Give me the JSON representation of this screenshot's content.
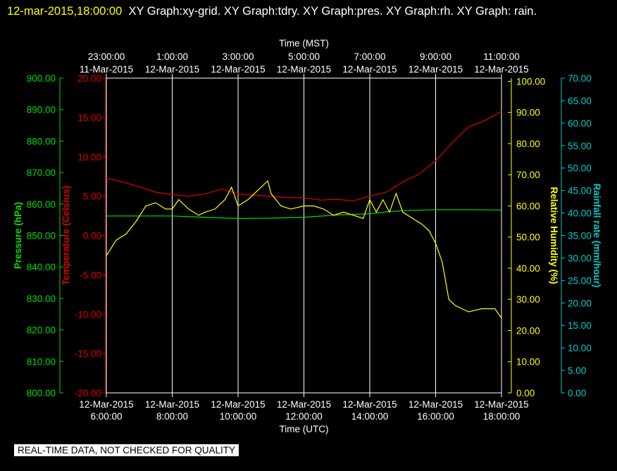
{
  "header": {
    "timestamp": "12-mar-2015,18:00:00",
    "graphs": "XY Graph:xy-grid.  XY Graph:tdry.  XY Graph:pres.  XY Graph:rh.  XY Graph: rain."
  },
  "footer": {
    "notice": "REAL-TIME DATA, NOT CHECKED FOR QUALITY"
  },
  "colors": {
    "background": "#000000",
    "grid": "#ffffff",
    "temperature": "#dd0000",
    "pressure": "#00dd00",
    "humidity": "#ffff00",
    "rain": "#00cccc"
  },
  "chart_data": {
    "type": "line",
    "x_bottom": {
      "label": "Time (UTC)",
      "ticks": [
        [
          "12-Mar-2015",
          "6:00:00"
        ],
        [
          "12-Mar-2015",
          "8:00:00"
        ],
        [
          "12-Mar-2015",
          "10:00:00"
        ],
        [
          "12-Mar-2015",
          "12:00:00"
        ],
        [
          "12-Mar-2015",
          "14:00:00"
        ],
        [
          "12-Mar-2015",
          "16:00:00"
        ],
        [
          "12-Mar-2015",
          "18:00:00"
        ]
      ]
    },
    "x_top": {
      "label": "Time (MST)",
      "ticks": [
        [
          "23:00:00",
          "11-Mar-2015"
        ],
        [
          "1:00:00",
          "12-Mar-2015"
        ],
        [
          "3:00:00",
          "12-Mar-2015"
        ],
        [
          "5:00:00",
          "12-Mar-2015"
        ],
        [
          "7:00:00",
          "12-Mar-2015"
        ],
        [
          "9:00:00",
          "12-Mar-2015"
        ],
        [
          "11:00:00",
          "12-Mar-2015"
        ]
      ]
    },
    "xlim_hours_utc": [
      6,
      18
    ],
    "grid": true,
    "axes": {
      "pressure": {
        "label": "Pressure (hPa)",
        "ylim": [
          800,
          900
        ],
        "ticks": [
          "800.00",
          "810.00",
          "820.00",
          "830.00",
          "840.00",
          "850.00",
          "860.00",
          "870.00",
          "880.00",
          "890.00",
          "900.00"
        ]
      },
      "temperature": {
        "label": "Temperature (Celsius)",
        "ylim": [
          -20,
          20
        ],
        "ticks": [
          "-20.00",
          "-15.00",
          "-10.00",
          "-5.00",
          "0.00",
          "5.00",
          "10.00",
          "15.00",
          "20.00"
        ]
      },
      "humidity": {
        "label": "Relative Humidity (%)",
        "ylim": [
          0,
          101
        ],
        "ticks": [
          "0.00",
          "10.00",
          "20.00",
          "30.00",
          "40.00",
          "50.00",
          "60.00",
          "70.00",
          "80.00",
          "90.00",
          "100.00"
        ]
      },
      "rain": {
        "label": "Rainfall rate (mm/hour)",
        "ylim": [
          0,
          70
        ],
        "ticks": [
          "0.00",
          "5.00",
          "10.00",
          "15.00",
          "20.00",
          "25.00",
          "30.00",
          "35.00",
          "40.00",
          "45.00",
          "50.00",
          "55.00",
          "60.00",
          "65.00",
          "70.00"
        ]
      }
    },
    "series": [
      {
        "name": "tdry",
        "axis": "temperature",
        "x": [
          6.0,
          6.5,
          7.0,
          7.5,
          8.0,
          8.5,
          9.0,
          9.5,
          10.0,
          10.5,
          11.0,
          11.5,
          12.0,
          12.5,
          13.0,
          13.5,
          14.0,
          14.5,
          15.0,
          15.5,
          16.0,
          16.5,
          17.0,
          17.5,
          18.0
        ],
        "y": [
          7.3,
          6.8,
          6.2,
          5.5,
          5.2,
          5.0,
          5.3,
          5.9,
          5.3,
          5.1,
          5.0,
          4.8,
          4.8,
          4.5,
          4.6,
          4.4,
          5.0,
          5.5,
          6.8,
          7.8,
          9.5,
          11.8,
          13.8,
          14.6,
          15.8
        ]
      },
      {
        "name": "pres",
        "axis": "pressure",
        "x": [
          6.0,
          7.0,
          8.0,
          9.0,
          10.0,
          11.0,
          12.0,
          13.0,
          14.0,
          14.5,
          15.0,
          16.0,
          17.0,
          18.0
        ],
        "y": [
          856.2,
          856.2,
          856.2,
          855.8,
          855.4,
          855.5,
          855.8,
          856.5,
          856.9,
          857.5,
          857.9,
          858.2,
          858.2,
          858.1
        ]
      },
      {
        "name": "rh",
        "axis": "humidity",
        "x": [
          6.0,
          6.3,
          6.6,
          6.9,
          7.2,
          7.5,
          7.8,
          8.0,
          8.2,
          8.5,
          8.8,
          9.0,
          9.3,
          9.6,
          9.8,
          10.0,
          10.3,
          10.6,
          10.9,
          11.0,
          11.3,
          11.6,
          12.0,
          12.3,
          12.6,
          12.9,
          13.2,
          13.5,
          13.8,
          14.0,
          14.2,
          14.4,
          14.6,
          14.8,
          15.0,
          15.3,
          15.6,
          15.8,
          16.0,
          16.2,
          16.4,
          16.6,
          16.8,
          17.0,
          17.4,
          17.8,
          18.0
        ],
        "y": [
          44,
          49,
          51,
          55,
          60,
          61,
          59,
          59,
          62,
          59,
          57,
          58,
          59,
          62,
          66,
          60,
          62,
          65,
          68,
          64,
          60,
          59,
          60,
          60,
          59,
          57,
          58,
          57,
          56,
          62,
          58,
          62,
          58,
          64,
          58,
          56,
          54,
          52,
          48,
          42,
          30,
          28,
          27,
          26,
          27,
          27,
          24
        ]
      }
    ]
  }
}
